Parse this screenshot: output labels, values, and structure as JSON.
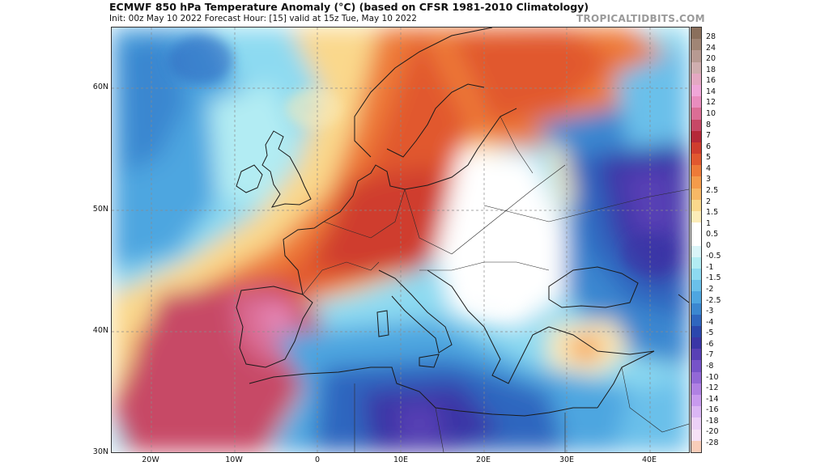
{
  "header": {
    "title": "ECMWF 850 hPa Temperature Anomaly (°C) (based on CFSR 1981-2010 Climatology)",
    "subtitle": "Init: 00z May 10 2022   Forecast Hour: [15]   valid at 15z Tue, May 10 2022",
    "brand": "TROPICALTIDBITS.COM"
  },
  "axes": {
    "lat_labels": [
      "60N",
      "50N",
      "40N",
      "30N"
    ],
    "lon_labels": [
      "20W",
      "10W",
      "0",
      "10E",
      "20E",
      "30E",
      "40E"
    ]
  },
  "colorbar": {
    "labels": [
      "28",
      "24",
      "20",
      "18",
      "16",
      "14",
      "12",
      "10",
      "8",
      "7",
      "6",
      "5",
      "4",
      "3",
      "2.5",
      "2",
      "1.5",
      "1",
      "0.5",
      "0",
      "-0.5",
      "-1",
      "-1.5",
      "-2",
      "-2.5",
      "-3",
      "-4",
      "-5",
      "-6",
      "-7",
      "-8",
      "-10",
      "-12",
      "-14",
      "-16",
      "-18",
      "-20",
      "-28"
    ],
    "colors": [
      "#8a6f5c",
      "#a08575",
      "#b79a92",
      "#cfaeaf",
      "#e4a8c2",
      "#f0a6d8",
      "#e98dbe",
      "#db6d95",
      "#c74866",
      "#b52838",
      "#cf3d2e",
      "#e1582f",
      "#ee7a38",
      "#f59b4a",
      "#f8b866",
      "#fad88c",
      "#fcecb8",
      "#ffffff",
      "#ffffff",
      "#d9f4f8",
      "#b2ecf3",
      "#8ddaf1",
      "#6ac0ea",
      "#4ea6e0",
      "#3b87d0",
      "#2f66bf",
      "#2b47ad",
      "#3a36a6",
      "#5840b5",
      "#7653c8",
      "#9268d6",
      "#b081e3",
      "#c89aee",
      "#dbb6f4",
      "#ecd0f7",
      "#f6e1f6",
      "#f9cdb9"
    ]
  },
  "chart_data": {
    "type": "heatmap",
    "title": "ECMWF 850 hPa Temperature Anomaly (°C)",
    "units": "°C",
    "lon_range": [
      -25,
      45
    ],
    "lat_range": [
      30,
      65
    ],
    "lon_ticks": [
      -20,
      -10,
      0,
      10,
      20,
      30,
      40
    ],
    "lat_ticks": [
      60,
      50,
      40,
      30
    ],
    "features": [
      {
        "name": "Warm plume over western/central Europe",
        "lon": 8,
        "lat": 50,
        "anomaly": 6
      },
      {
        "name": "Iberian warm core",
        "lon": -5,
        "lat": 40,
        "anomaly": 12
      },
      {
        "name": "Cold pool over Ukraine/western Russia",
        "lon": 33,
        "lat": 51,
        "anomaly": -7
      },
      {
        "name": "Cold anomaly over North Africa",
        "lon": 12,
        "lat": 33,
        "anomaly": -6
      },
      {
        "name": "Warm spot over Turkey",
        "lon": 31,
        "lat": 39,
        "anomaly": 3
      },
      {
        "name": "Cool North Atlantic",
        "lon": -22,
        "lat": 58,
        "anomaly": -3
      }
    ]
  }
}
